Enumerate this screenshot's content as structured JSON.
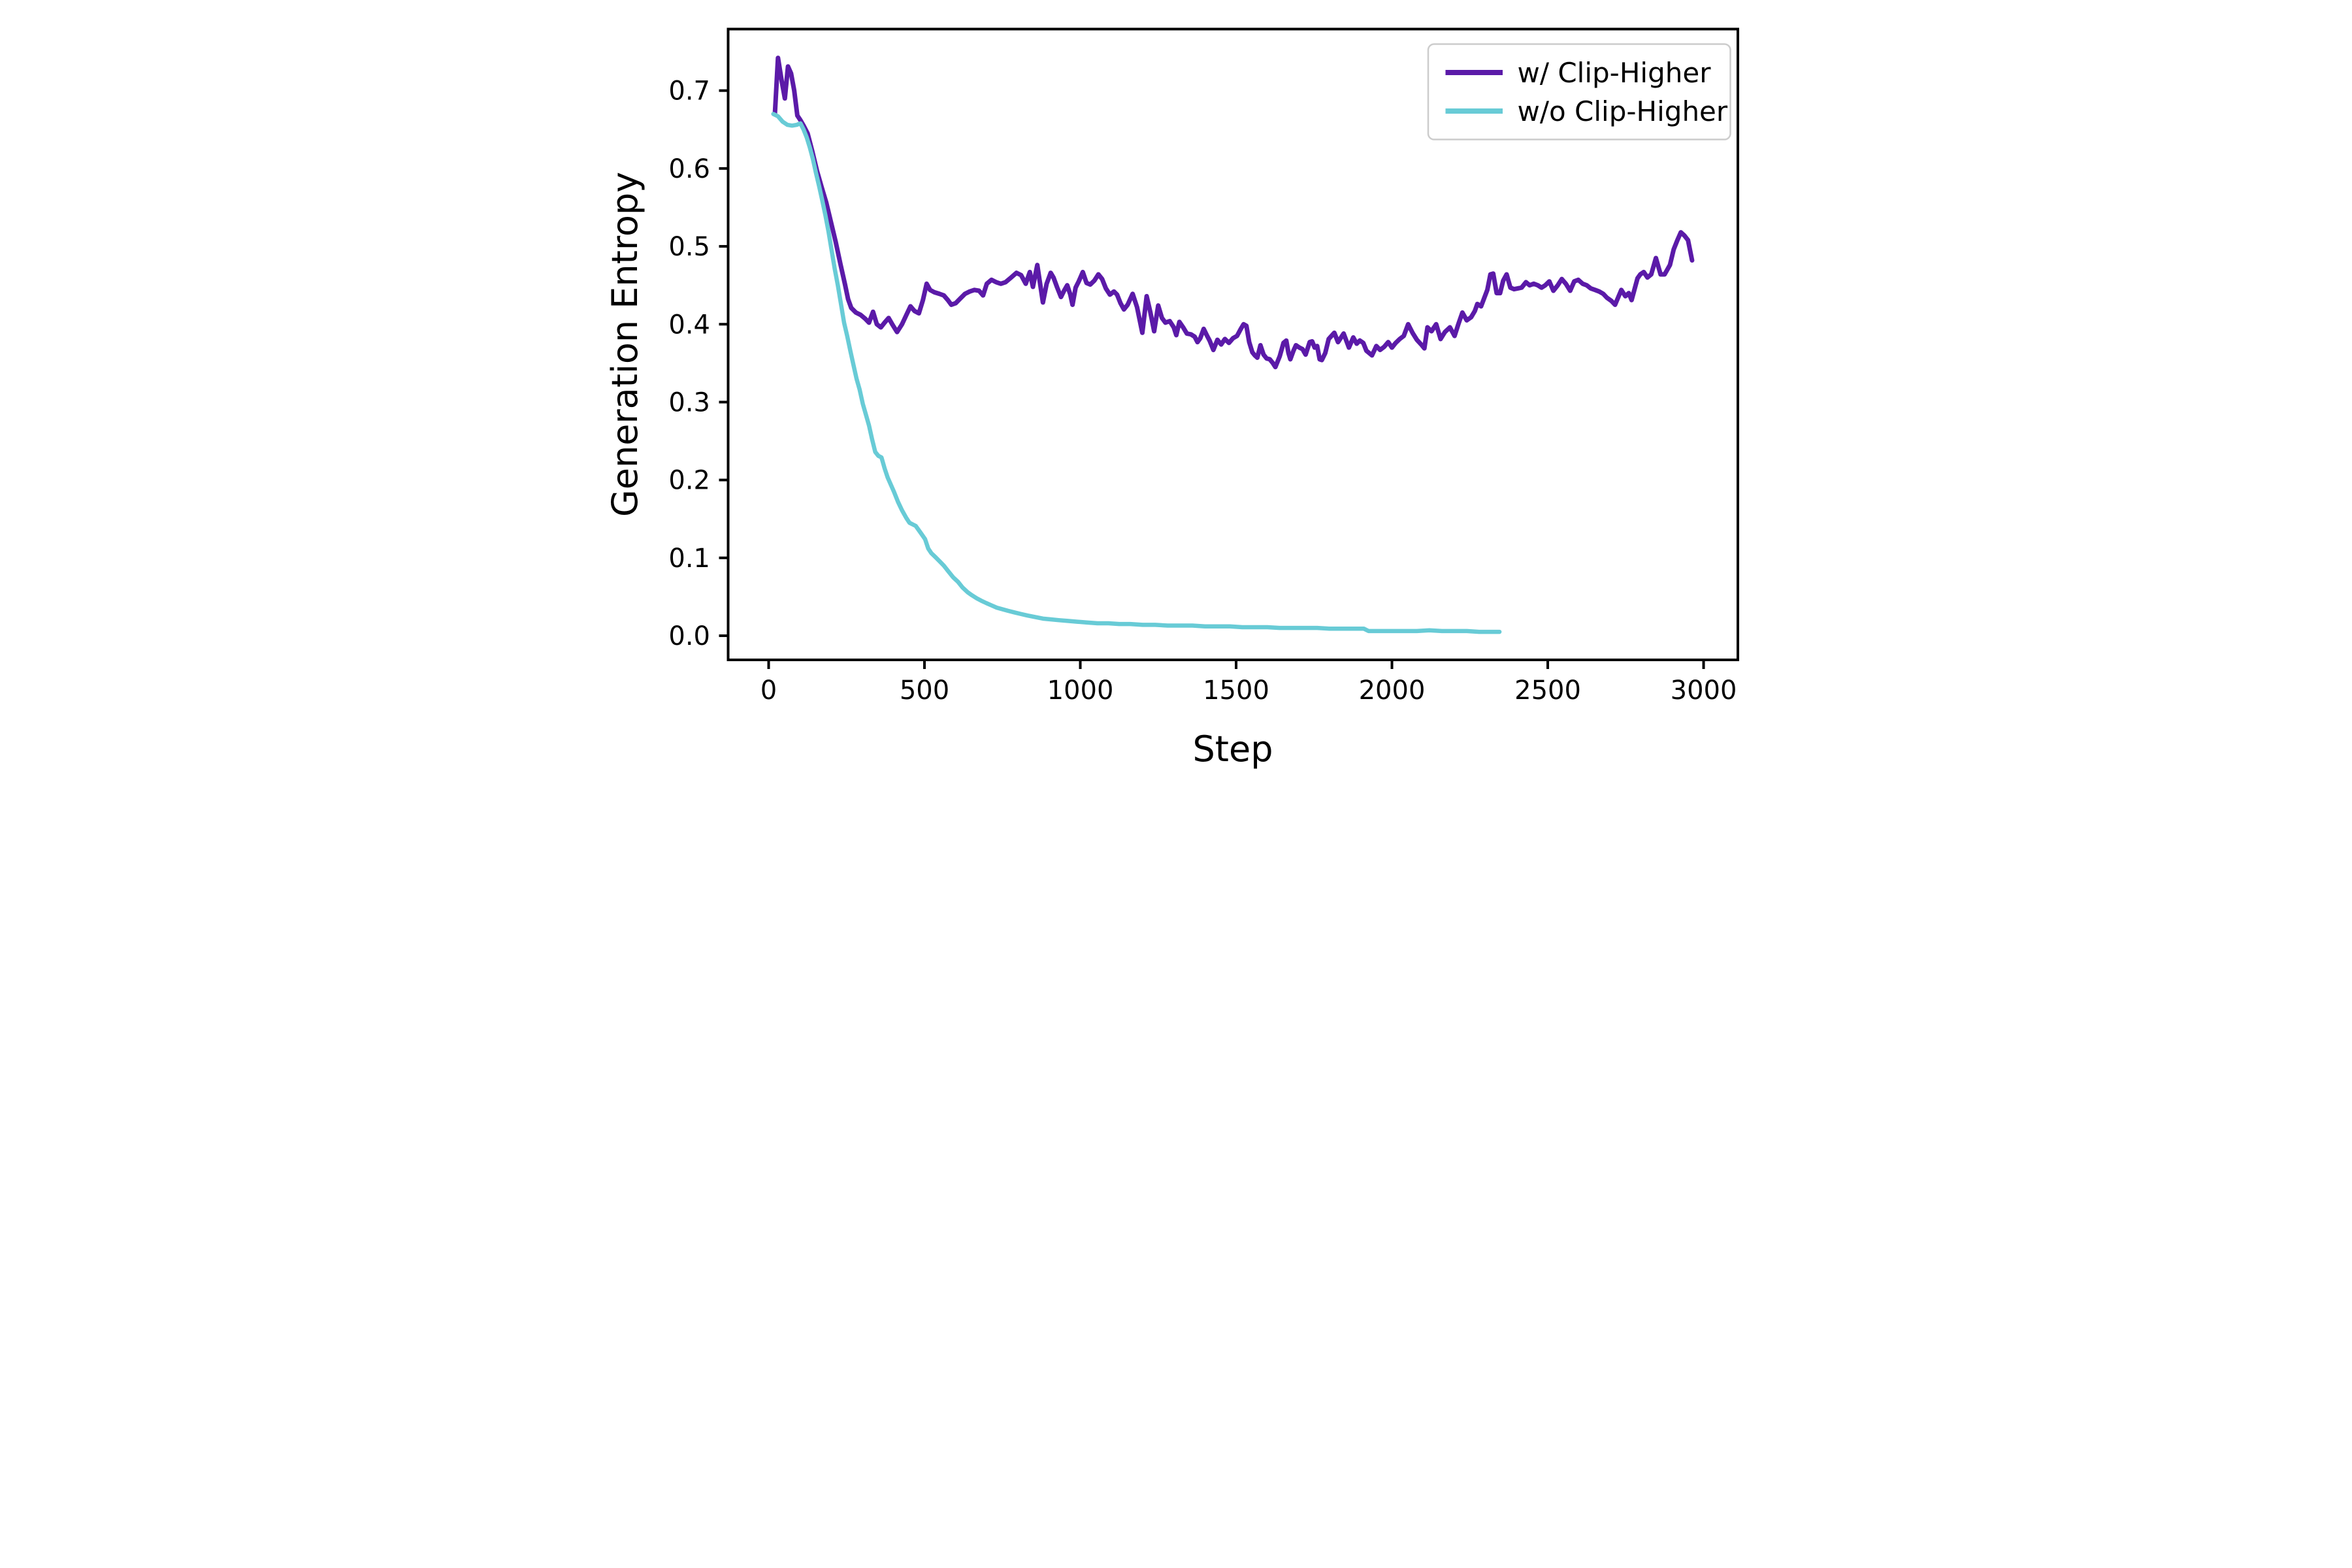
{
  "chart_data": {
    "type": "line",
    "title": "",
    "xlabel": "Step",
    "ylabel": "Generation Entropy",
    "xlim": [
      -130,
      3110
    ],
    "ylim": [
      -0.031,
      0.779
    ],
    "grid": false,
    "legend_position": "upper right",
    "x_ticks": [
      0,
      500,
      1000,
      1500,
      2000,
      2500,
      3000
    ],
    "x_tick_labels": [
      "0",
      "500",
      "1000",
      "1500",
      "2000",
      "2500",
      "3000"
    ],
    "y_ticks": [
      0.0,
      0.1,
      0.2,
      0.3,
      0.4,
      0.5,
      0.6,
      0.7
    ],
    "y_tick_labels": [
      "0.0",
      "0.1",
      "0.2",
      "0.3",
      "0.4",
      "0.5",
      "0.6",
      "0.7"
    ],
    "series": [
      {
        "name": "w/ Clip-Higher",
        "color": "#5b1aa8",
        "linewidth": 14,
        "x": [
          20,
          30,
          42,
          52,
          62,
          72,
          82,
          92,
          102,
          112,
          125,
          140,
          155,
          170,
          185,
          200,
          215,
          230,
          245,
          255,
          265,
          280,
          295,
          310,
          322,
          335,
          347,
          360,
          372,
          385,
          398,
          412,
          428,
          442,
          455,
          468,
          482,
          495,
          507,
          518,
          532,
          548,
          562,
          575,
          586,
          600,
          615,
          630,
          645,
          660,
          675,
          688,
          700,
          715,
          730,
          745,
          760,
          775,
          795,
          810,
          825,
          838,
          848,
          862,
          880,
          892,
          905,
          914,
          926,
          938,
          948,
          958,
          968,
          975,
          985,
          995,
          1008,
          1020,
          1032,
          1045,
          1058,
          1070,
          1082,
          1095,
          1108,
          1118,
          1129,
          1140,
          1152,
          1168,
          1182,
          1199,
          1213,
          1225,
          1237,
          1250,
          1262,
          1273,
          1287,
          1300,
          1308,
          1318,
          1330,
          1342,
          1355,
          1367,
          1376,
          1385,
          1396,
          1407,
          1415,
          1427,
          1440,
          1452,
          1464,
          1477,
          1490,
          1503,
          1515,
          1524,
          1533,
          1542,
          1552,
          1560,
          1568,
          1578,
          1588,
          1598,
          1608,
          1618,
          1626,
          1640,
          1652,
          1661,
          1668,
          1674,
          1684,
          1692,
          1703,
          1713,
          1723,
          1736,
          1744,
          1752,
          1760,
          1768,
          1775,
          1786,
          1797,
          1815,
          1827,
          1845,
          1862,
          1876,
          1887,
          1897,
          1908,
          1918,
          1936,
          1950,
          1962,
          1975,
          1988,
          2000,
          2012,
          2025,
          2038,
          2052,
          2066,
          2080,
          2096,
          2104,
          2114,
          2127,
          2142,
          2156,
          2170,
          2186,
          2201,
          2213,
          2226,
          2240,
          2254,
          2266,
          2274,
          2286,
          2306,
          2316,
          2325,
          2336,
          2347,
          2357,
          2368,
          2380,
          2392,
          2404,
          2416,
          2430,
          2442,
          2455,
          2468,
          2480,
          2492,
          2505,
          2518,
          2532,
          2545,
          2558,
          2572,
          2585,
          2598,
          2612,
          2625,
          2638,
          2652,
          2665,
          2678,
          2690,
          2704,
          2716,
          2736,
          2749,
          2760,
          2769,
          2788,
          2797,
          2808,
          2820,
          2832,
          2847,
          2862,
          2875,
          2892,
          2904,
          2916,
          2927,
          2938,
          2950,
          2963
        ],
        "y": [
          0.67,
          0.742,
          0.712,
          0.69,
          0.731,
          0.722,
          0.7,
          0.668,
          0.662,
          0.655,
          0.645,
          0.622,
          0.597,
          0.576,
          0.556,
          0.531,
          0.506,
          0.478,
          0.451,
          0.432,
          0.421,
          0.415,
          0.412,
          0.407,
          0.402,
          0.416,
          0.4,
          0.396,
          0.402,
          0.408,
          0.399,
          0.39,
          0.4,
          0.412,
          0.423,
          0.417,
          0.414,
          0.431,
          0.452,
          0.444,
          0.441,
          0.439,
          0.437,
          0.431,
          0.425,
          0.427,
          0.433,
          0.439,
          0.442,
          0.444,
          0.443,
          0.437,
          0.452,
          0.457,
          0.454,
          0.452,
          0.454,
          0.459,
          0.466,
          0.463,
          0.452,
          0.467,
          0.448,
          0.476,
          0.428,
          0.452,
          0.466,
          0.46,
          0.447,
          0.435,
          0.443,
          0.45,
          0.438,
          0.425,
          0.447,
          0.455,
          0.467,
          0.453,
          0.451,
          0.456,
          0.464,
          0.458,
          0.446,
          0.438,
          0.442,
          0.438,
          0.427,
          0.419,
          0.425,
          0.439,
          0.422,
          0.389,
          0.436,
          0.415,
          0.391,
          0.424,
          0.408,
          0.402,
          0.404,
          0.396,
          0.386,
          0.403,
          0.396,
          0.388,
          0.387,
          0.384,
          0.377,
          0.382,
          0.394,
          0.385,
          0.379,
          0.367,
          0.38,
          0.374,
          0.381,
          0.376,
          0.382,
          0.385,
          0.394,
          0.4,
          0.398,
          0.377,
          0.364,
          0.36,
          0.357,
          0.373,
          0.361,
          0.356,
          0.355,
          0.35,
          0.345,
          0.359,
          0.376,
          0.379,
          0.363,
          0.355,
          0.366,
          0.373,
          0.37,
          0.368,
          0.361,
          0.377,
          0.378,
          0.37,
          0.372,
          0.355,
          0.354,
          0.363,
          0.381,
          0.389,
          0.377,
          0.388,
          0.37,
          0.383,
          0.375,
          0.379,
          0.376,
          0.366,
          0.36,
          0.372,
          0.367,
          0.371,
          0.377,
          0.37,
          0.376,
          0.381,
          0.385,
          0.4,
          0.389,
          0.38,
          0.373,
          0.369,
          0.396,
          0.391,
          0.4,
          0.381,
          0.39,
          0.396,
          0.385,
          0.4,
          0.415,
          0.405,
          0.409,
          0.417,
          0.426,
          0.423,
          0.444,
          0.464,
          0.465,
          0.44,
          0.44,
          0.456,
          0.464,
          0.447,
          0.445,
          0.446,
          0.447,
          0.454,
          0.45,
          0.452,
          0.45,
          0.447,
          0.45,
          0.455,
          0.443,
          0.45,
          0.458,
          0.452,
          0.443,
          0.455,
          0.457,
          0.452,
          0.45,
          0.446,
          0.444,
          0.442,
          0.439,
          0.434,
          0.43,
          0.425,
          0.444,
          0.436,
          0.44,
          0.431,
          0.459,
          0.464,
          0.467,
          0.46,
          0.464,
          0.485,
          0.464,
          0.464,
          0.476,
          0.496,
          0.508,
          0.518,
          0.514,
          0.508,
          0.482
        ]
      },
      {
        "name": "w/o Clip-Higher",
        "color": "#68cbd6",
        "linewidth": 13,
        "x": [
          15,
          30,
          45,
          60,
          75,
          90,
          102,
          112,
          122,
          132,
          142,
          152,
          162,
          172,
          182,
          192,
          202,
          212,
          222,
          232,
          242,
          252,
          262,
          272,
          282,
          292,
          302,
          312,
          322,
          332,
          342,
          352,
          362,
          372,
          382,
          392,
          402,
          415,
          428,
          442,
          452,
          462,
          472,
          488,
          502,
          512,
          522,
          535,
          550,
          562,
          578,
          592,
          608,
          622,
          638,
          652,
          668,
          682,
          698,
          715,
          732,
          750,
          768,
          788,
          808,
          830,
          855,
          880,
          905,
          930,
          960,
          990,
          1020,
          1055,
          1090,
          1125,
          1160,
          1200,
          1240,
          1280,
          1320,
          1360,
          1400,
          1440,
          1480,
          1520,
          1560,
          1600,
          1640,
          1680,
          1720,
          1760,
          1800,
          1840,
          1880,
          1910,
          1925,
          1960,
          2000,
          2040,
          2080,
          2120,
          2160,
          2200,
          2240,
          2280,
          2310,
          2345
        ],
        "y": [
          0.67,
          0.667,
          0.66,
          0.656,
          0.655,
          0.656,
          0.658,
          0.65,
          0.64,
          0.627,
          0.612,
          0.594,
          0.577,
          0.559,
          0.54,
          0.519,
          0.495,
          0.471,
          0.45,
          0.426,
          0.402,
          0.385,
          0.366,
          0.348,
          0.33,
          0.316,
          0.298,
          0.284,
          0.27,
          0.252,
          0.236,
          0.231,
          0.229,
          0.215,
          0.203,
          0.194,
          0.185,
          0.172,
          0.161,
          0.151,
          0.145,
          0.143,
          0.141,
          0.132,
          0.124,
          0.112,
          0.106,
          0.101,
          0.095,
          0.09,
          0.082,
          0.075,
          0.069,
          0.062,
          0.056,
          0.052,
          0.048,
          0.045,
          0.042,
          0.039,
          0.036,
          0.034,
          0.032,
          0.03,
          0.028,
          0.026,
          0.024,
          0.022,
          0.021,
          0.02,
          0.019,
          0.018,
          0.017,
          0.016,
          0.016,
          0.015,
          0.015,
          0.014,
          0.014,
          0.013,
          0.013,
          0.013,
          0.012,
          0.012,
          0.012,
          0.011,
          0.011,
          0.011,
          0.01,
          0.01,
          0.01,
          0.01,
          0.009,
          0.009,
          0.009,
          0.009,
          0.006,
          0.006,
          0.006,
          0.006,
          0.006,
          0.007,
          0.006,
          0.006,
          0.006,
          0.005,
          0.005,
          0.005
        ]
      }
    ]
  }
}
